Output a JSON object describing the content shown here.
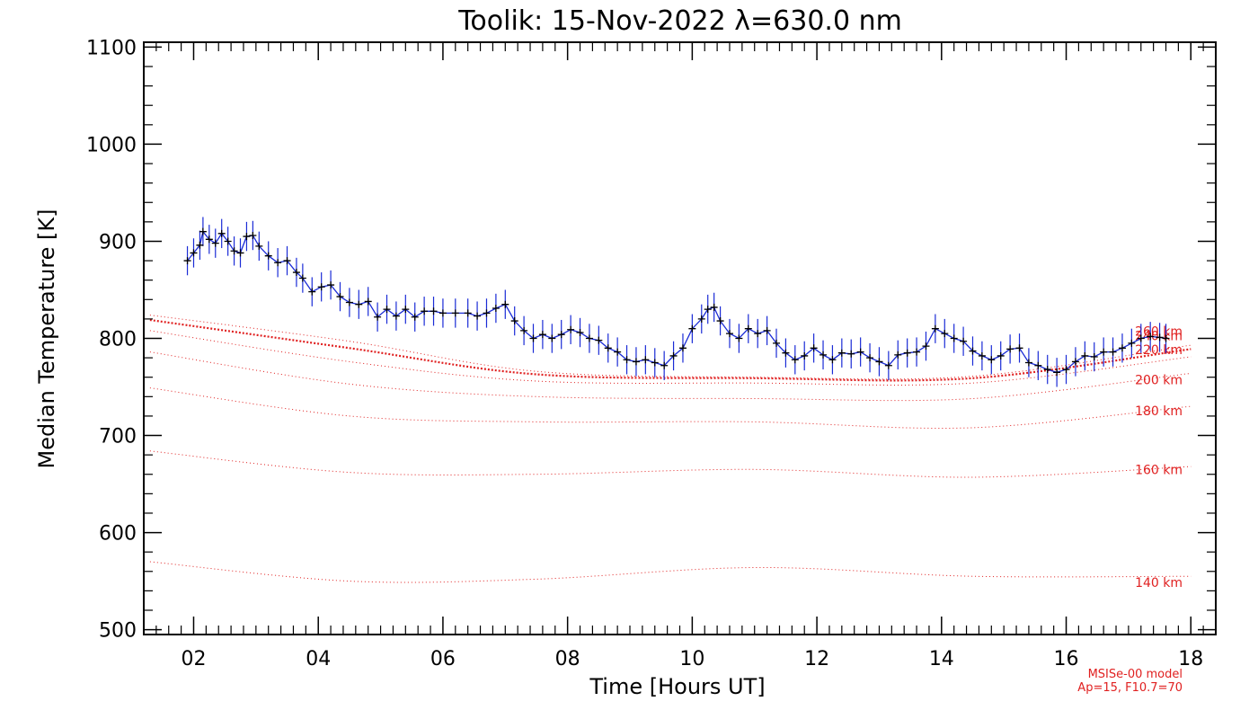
{
  "chart_data": {
    "type": "line",
    "title": "Toolik: 15-Nov-2022 λ=630.0 nm",
    "xlabel": "Time [Hours UT]",
    "ylabel": "Median Temperature [K]",
    "xlim": [
      1.2,
      18.4
    ],
    "ylim": [
      495,
      1105
    ],
    "x_ticks": [
      2,
      4,
      6,
      8,
      10,
      12,
      14,
      16,
      18
    ],
    "x_tick_labels": [
      "02",
      "04",
      "06",
      "08",
      "10",
      "12",
      "14",
      "16",
      "18"
    ],
    "y_ticks": [
      500,
      600,
      700,
      800,
      900,
      1000,
      1100
    ],
    "y_tick_labels": [
      "500",
      "600",
      "700",
      "800",
      "900",
      "1000",
      "1100"
    ],
    "grid": false,
    "colors": {
      "data": "#000000",
      "error_bars": "#1a2bd6",
      "model": "#e02020"
    },
    "series": [
      {
        "error": 15,
        "points": [
          [
            1.9,
            880
          ],
          [
            2.0,
            888
          ],
          [
            2.1,
            896
          ],
          [
            2.15,
            910
          ],
          [
            2.25,
            902
          ],
          [
            2.35,
            898
          ],
          [
            2.45,
            908
          ],
          [
            2.55,
            900
          ],
          [
            2.65,
            890
          ],
          [
            2.75,
            888
          ],
          [
            2.85,
            905
          ],
          [
            2.95,
            906
          ],
          [
            3.05,
            895
          ],
          [
            3.2,
            885
          ],
          [
            3.35,
            878
          ],
          [
            3.5,
            880
          ],
          [
            3.65,
            868
          ],
          [
            3.75,
            862
          ],
          [
            3.9,
            848
          ],
          [
            4.05,
            853
          ],
          [
            4.2,
            855
          ],
          [
            4.35,
            843
          ],
          [
            4.5,
            837
          ],
          [
            4.65,
            835
          ],
          [
            4.8,
            838
          ],
          [
            4.95,
            822
          ],
          [
            5.1,
            830
          ],
          [
            5.25,
            823
          ],
          [
            5.4,
            830
          ],
          [
            5.55,
            822
          ],
          [
            5.7,
            828
          ],
          [
            5.85,
            828
          ],
          [
            6.0,
            826
          ],
          [
            6.2,
            826
          ],
          [
            6.4,
            826
          ],
          [
            6.55,
            823
          ],
          [
            6.7,
            826
          ],
          [
            6.85,
            831
          ],
          [
            7.0,
            835
          ],
          [
            7.15,
            818
          ],
          [
            7.3,
            808
          ],
          [
            7.45,
            800
          ],
          [
            7.6,
            804
          ],
          [
            7.75,
            800
          ],
          [
            7.9,
            804
          ],
          [
            8.05,
            809
          ],
          [
            8.2,
            806
          ],
          [
            8.35,
            800
          ],
          [
            8.5,
            798
          ],
          [
            8.65,
            790
          ],
          [
            8.8,
            786
          ],
          [
            8.95,
            778
          ],
          [
            9.1,
            776
          ],
          [
            9.25,
            778
          ],
          [
            9.4,
            775
          ],
          [
            9.55,
            772
          ],
          [
            9.7,
            782
          ],
          [
            9.85,
            790
          ],
          [
            10.0,
            810
          ],
          [
            10.15,
            820
          ],
          [
            10.25,
            830
          ],
          [
            10.35,
            832
          ],
          [
            10.45,
            818
          ],
          [
            10.6,
            805
          ],
          [
            10.75,
            800
          ],
          [
            10.9,
            810
          ],
          [
            11.05,
            805
          ],
          [
            11.2,
            808
          ],
          [
            11.35,
            795
          ],
          [
            11.5,
            785
          ],
          [
            11.65,
            778
          ],
          [
            11.8,
            782
          ],
          [
            11.95,
            790
          ],
          [
            12.1,
            783
          ],
          [
            12.25,
            778
          ],
          [
            12.4,
            785
          ],
          [
            12.55,
            784
          ],
          [
            12.7,
            786
          ],
          [
            12.85,
            780
          ],
          [
            13.0,
            776
          ],
          [
            13.15,
            772
          ],
          [
            13.3,
            783
          ],
          [
            13.45,
            785
          ],
          [
            13.6,
            786
          ],
          [
            13.75,
            792
          ],
          [
            13.9,
            810
          ],
          [
            14.05,
            805
          ],
          [
            14.2,
            800
          ],
          [
            14.35,
            797
          ],
          [
            14.5,
            787
          ],
          [
            14.65,
            782
          ],
          [
            14.8,
            778
          ],
          [
            14.95,
            782
          ],
          [
            15.1,
            789
          ],
          [
            15.25,
            790
          ],
          [
            15.4,
            775
          ],
          [
            15.55,
            772
          ],
          [
            15.7,
            768
          ],
          [
            15.85,
            765
          ],
          [
            16.0,
            768
          ],
          [
            16.15,
            776
          ],
          [
            16.3,
            782
          ],
          [
            16.45,
            781
          ],
          [
            16.6,
            786
          ],
          [
            16.75,
            786
          ],
          [
            16.9,
            790
          ],
          [
            17.05,
            795
          ],
          [
            17.2,
            800
          ],
          [
            17.35,
            802
          ],
          [
            17.5,
            801
          ],
          [
            17.6,
            800
          ]
        ]
      }
    ],
    "model_curves": [
      {
        "label": "140 km",
        "values": [
          [
            1.3,
            570
          ],
          [
            4.5,
            550
          ],
          [
            7.5,
            552
          ],
          [
            11.0,
            564
          ],
          [
            14.5,
            555
          ],
          [
            18.0,
            555
          ]
        ]
      },
      {
        "label": "160 km",
        "values": [
          [
            1.3,
            684
          ],
          [
            4.5,
            662
          ],
          [
            7.5,
            660
          ],
          [
            11.0,
            665
          ],
          [
            14.5,
            657
          ],
          [
            18.0,
            668
          ]
        ]
      },
      {
        "label": "180 km",
        "values": [
          [
            1.3,
            749
          ],
          [
            4.5,
            720
          ],
          [
            7.5,
            714
          ],
          [
            11.0,
            714
          ],
          [
            14.5,
            708
          ],
          [
            18.0,
            730
          ]
        ]
      },
      {
        "label": "200 km",
        "values": [
          [
            1.3,
            786
          ],
          [
            4.5,
            753
          ],
          [
            7.5,
            740
          ],
          [
            11.0,
            738
          ],
          [
            14.5,
            738
          ],
          [
            18.0,
            764
          ]
        ]
      },
      {
        "label": "220 km",
        "values": [
          [
            1.3,
            808
          ],
          [
            4.5,
            776
          ],
          [
            7.5,
            756
          ],
          [
            11.0,
            754
          ],
          [
            14.5,
            754
          ],
          [
            18.0,
            781
          ]
        ]
      },
      {
        "label": "240 km",
        "values": [
          [
            1.3,
            819
          ],
          [
            4.5,
            790
          ],
          [
            7.5,
            763
          ],
          [
            11.0,
            759
          ],
          [
            14.5,
            759
          ],
          [
            18.0,
            789
          ]
        ]
      },
      {
        "label": "260 km",
        "values": [
          [
            1.3,
            824
          ],
          [
            4.5,
            797
          ],
          [
            7.5,
            766
          ],
          [
            11.0,
            760
          ],
          [
            14.5,
            761
          ],
          [
            18.0,
            793
          ]
        ]
      }
    ],
    "model_label_y": [
      544,
      660,
      721,
      753,
      784,
      798,
      803
    ],
    "annotation": [
      "MSISe-00 model",
      "Ap=15, F10.7=70"
    ]
  }
}
